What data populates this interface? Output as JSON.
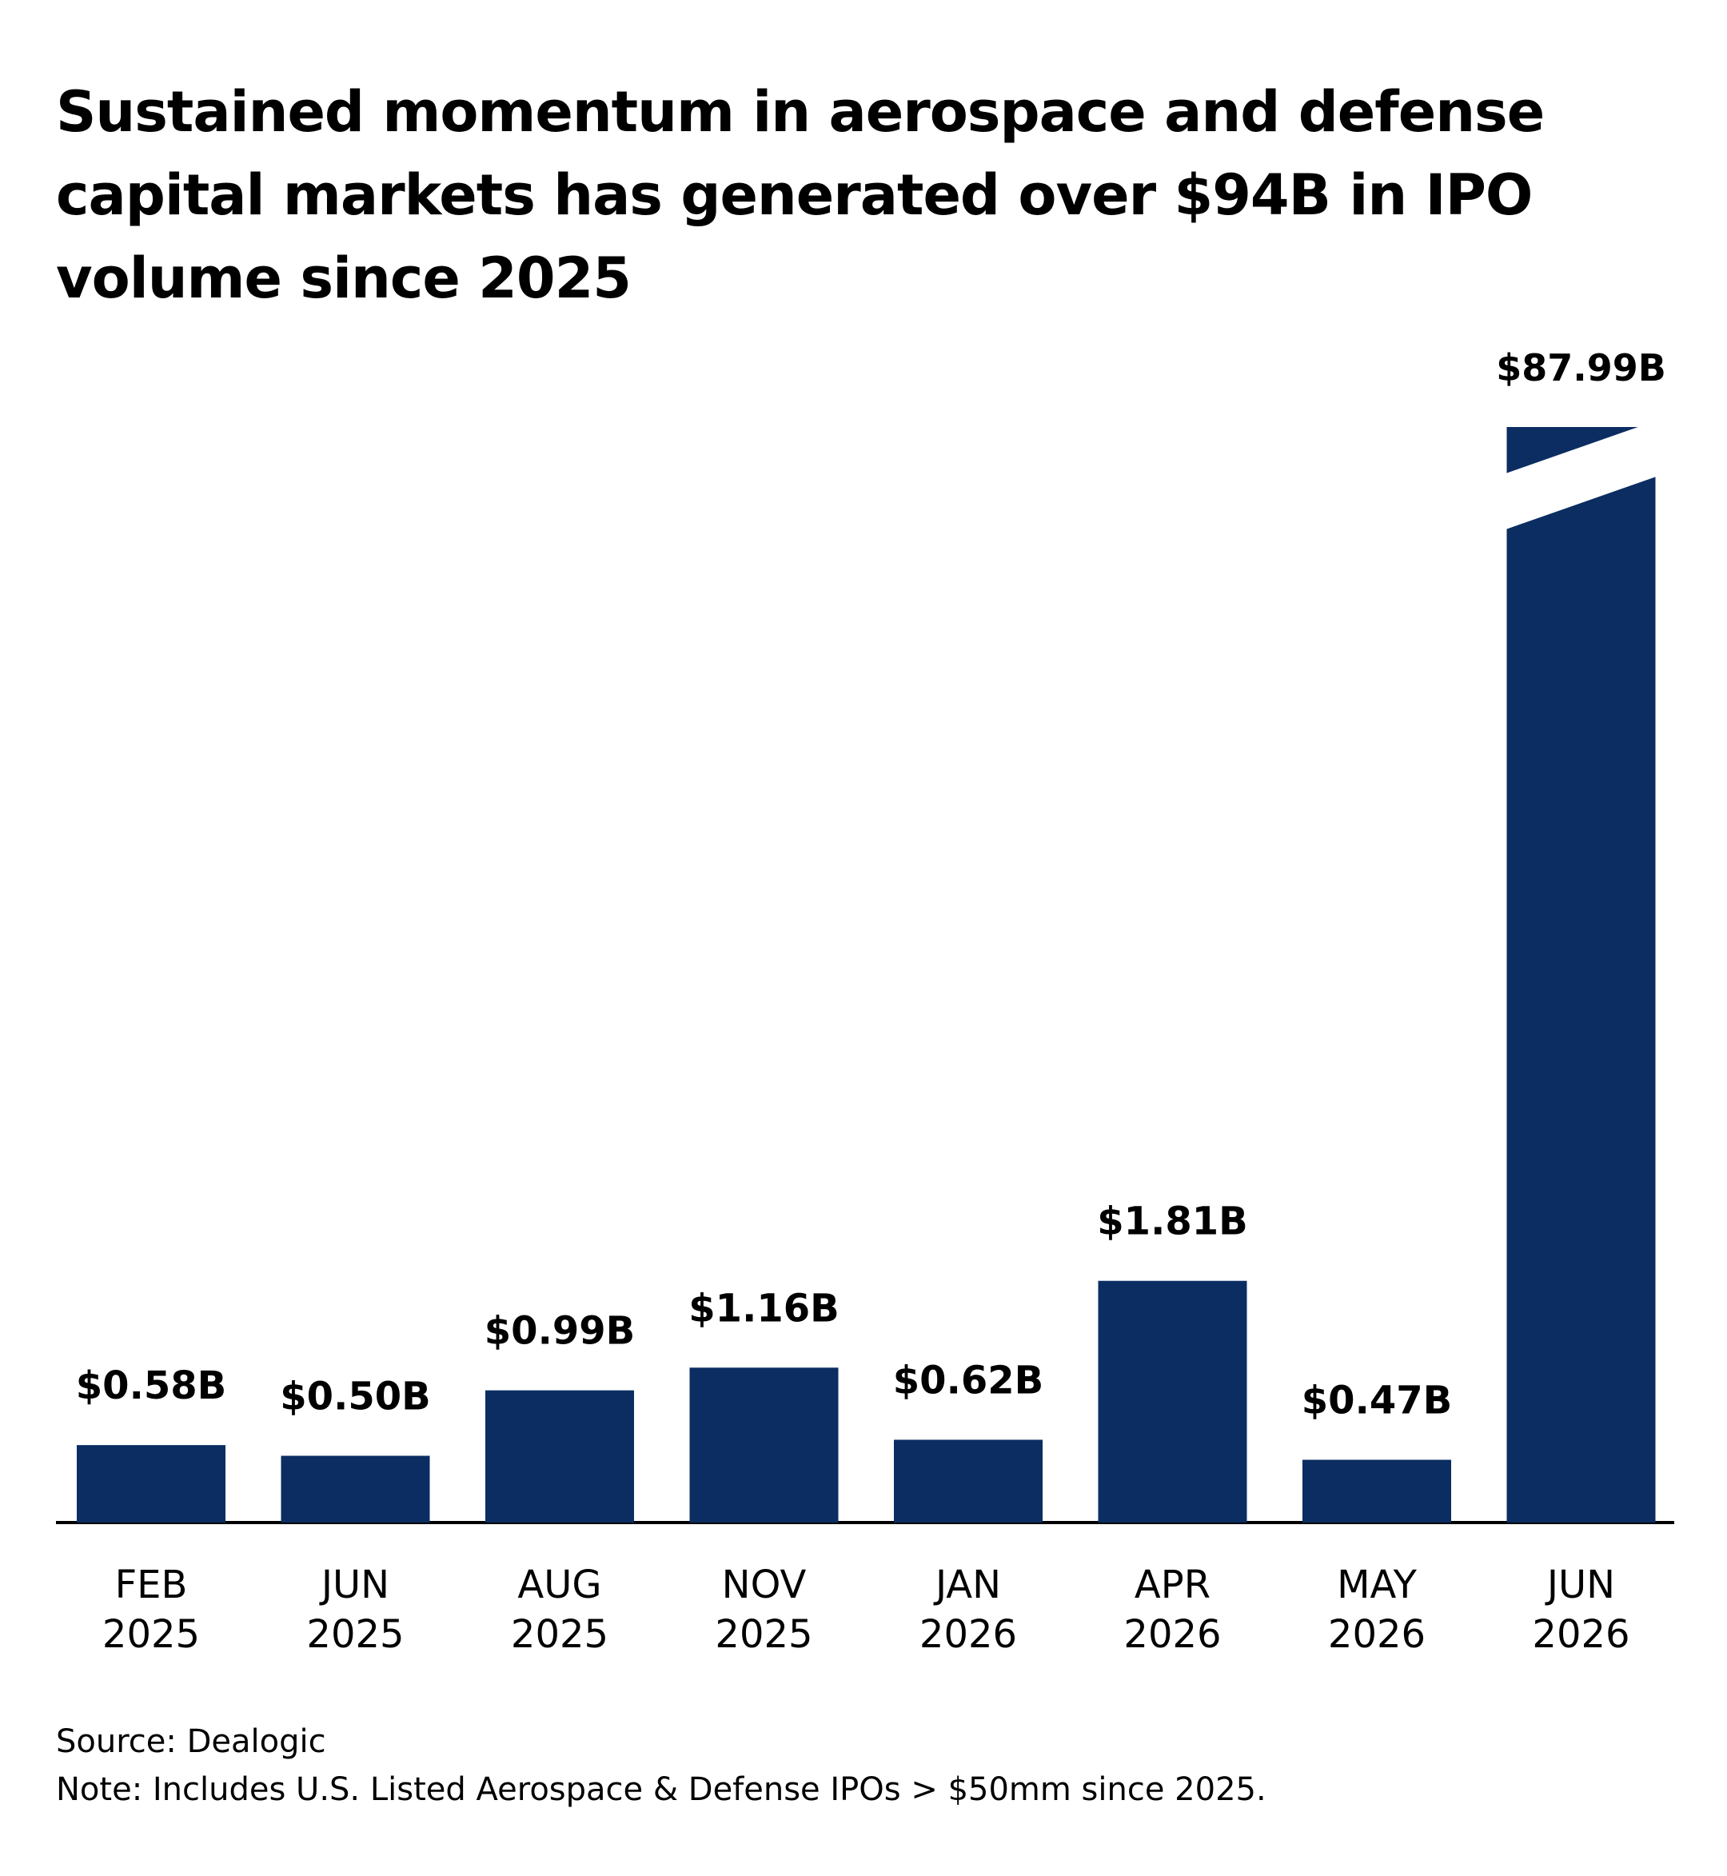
{
  "title_lines": [
    "Sustained momentum in aerospace and defense",
    "capital markets has generated over $94B in IPO",
    "volume since 2025"
  ],
  "chart_data": {
    "type": "bar",
    "title": "Sustained momentum in aerospace and defense capital markets has generated over $94B in IPO volume since 2025",
    "categories": [
      [
        "FEB",
        "2025"
      ],
      [
        "JUN",
        "2025"
      ],
      [
        "AUG",
        "2025"
      ],
      [
        "NOV",
        "2025"
      ],
      [
        "JAN",
        "2026"
      ],
      [
        "APR",
        "2026"
      ],
      [
        "MAY",
        "2026"
      ],
      [
        "JUN",
        "2026"
      ]
    ],
    "values": [
      0.58,
      0.5,
      0.99,
      1.16,
      0.62,
      1.81,
      0.47,
      87.99
    ],
    "data_labels": [
      "$0.58B",
      "$0.50B",
      "$0.99B",
      "$1.16B",
      "$0.62B",
      "$1.81B",
      "$0.47B",
      "$87.99B"
    ],
    "unit": "B",
    "axis_break_on_last_bar": true,
    "grid": false,
    "colors": {
      "bar": "#0b2d61",
      "axis": "#000000",
      "text": "#000000"
    }
  },
  "footer": {
    "source": "Source: Dealogic",
    "note": "Note: Includes U.S. Listed Aerospace & Defense IPOs > $50mm since 2025."
  }
}
